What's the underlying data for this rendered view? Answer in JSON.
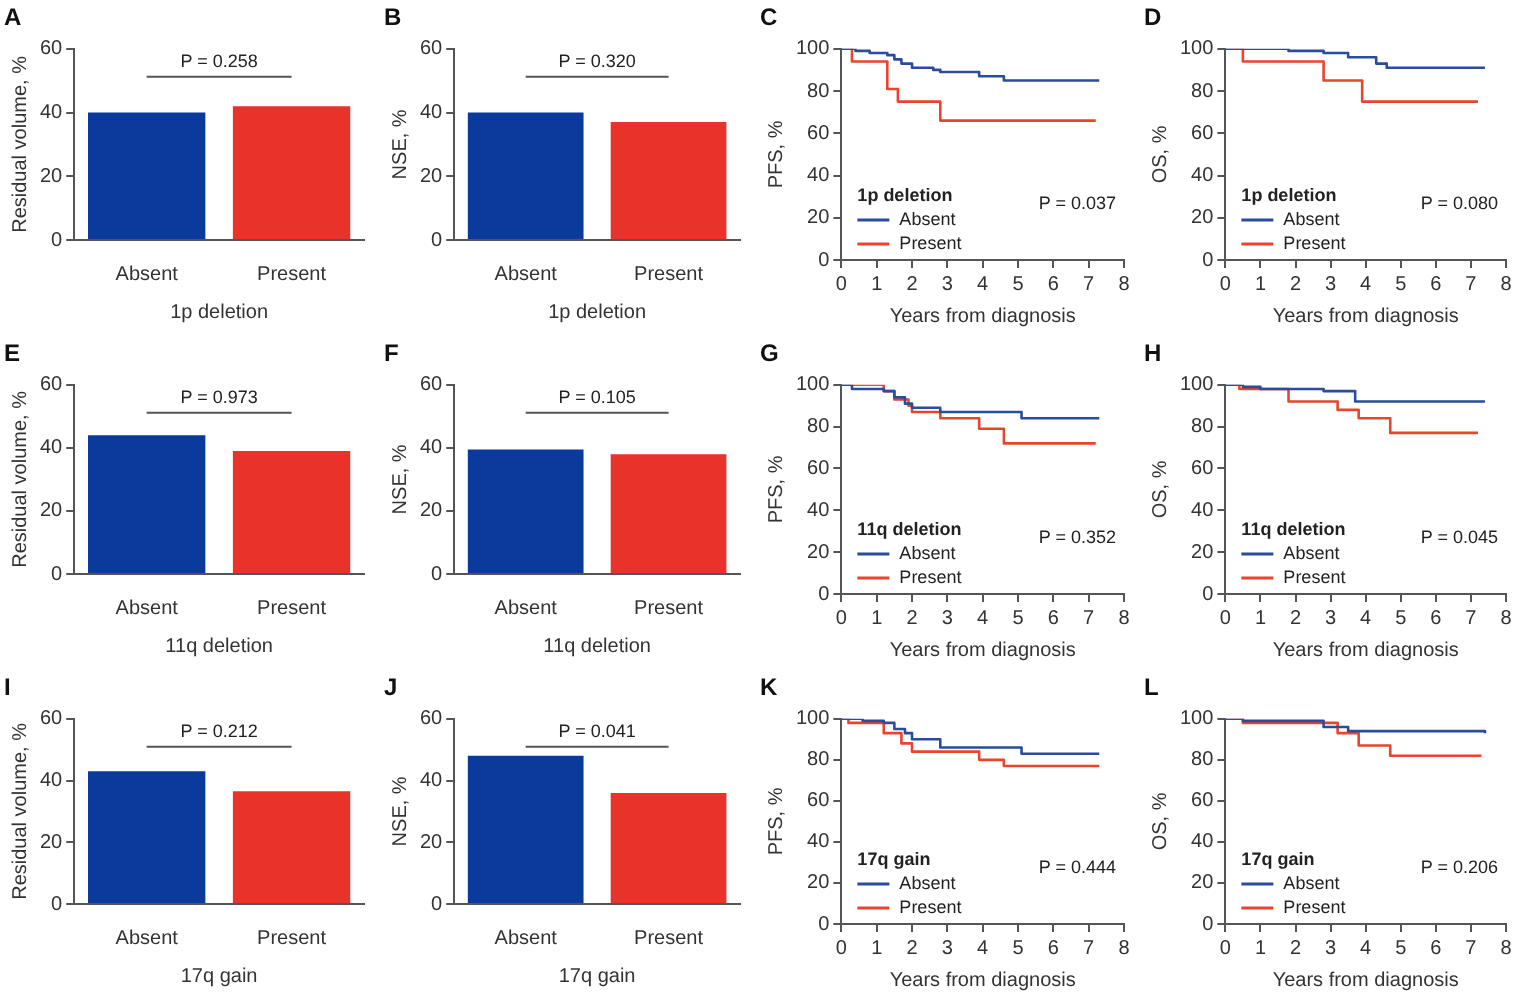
{
  "chart_data": [
    {
      "type": "bar",
      "title": "A",
      "xlabel": "1p deletion",
      "ylabel": "Residual volume, %",
      "categories": [
        "Absent",
        "Present"
      ],
      "values": [
        40,
        42
      ],
      "colors": [
        "#0a3a9c",
        "#e8322a"
      ],
      "ylim": [
        0,
        60
      ],
      "yticks": [
        0,
        20,
        40,
        60
      ],
      "annotations": [
        "P = 0.258"
      ]
    },
    {
      "type": "bar",
      "title": "B",
      "xlabel": "1p deletion",
      "ylabel": "NSE, %",
      "categories": [
        "Absent",
        "Present"
      ],
      "values": [
        40,
        37
      ],
      "colors": [
        "#0a3a9c",
        "#e8322a"
      ],
      "ylim": [
        0,
        60
      ],
      "yticks": [
        0,
        20,
        40,
        60
      ],
      "annotations": [
        "P = 0.320"
      ]
    },
    {
      "type": "step",
      "title": "C",
      "xlabel": "Years from diagnosis",
      "ylabel": "PFS, %",
      "legend_title": "1p deletion",
      "legend": "bottom left",
      "xlim": [
        0,
        8
      ],
      "xticks": [
        0,
        1,
        2,
        3,
        4,
        5,
        6,
        7,
        8
      ],
      "ylim": [
        0,
        100
      ],
      "yticks": [
        0,
        20,
        40,
        60,
        80,
        100
      ],
      "annotations": [
        "P = 0.037"
      ],
      "series": [
        {
          "name": "Absent",
          "color": "#2b4c9b",
          "x": [
            0,
            0.4,
            0.8,
            1.3,
            1.5,
            1.7,
            2.0,
            2.6,
            2.8,
            3.9,
            4.6,
            7.3
          ],
          "values": [
            100,
            99,
            98,
            97,
            95,
            93,
            91,
            90,
            89,
            87,
            85,
            85
          ]
        },
        {
          "name": "Present",
          "color": "#e8452e",
          "x": [
            0,
            0.3,
            1.3,
            1.6,
            2.8,
            7.2
          ],
          "values": [
            100,
            94,
            81,
            75,
            66,
            66
          ]
        }
      ]
    },
    {
      "type": "step",
      "title": "D",
      "xlabel": "Years from diagnosis",
      "ylabel": "OS, %",
      "legend_title": "1p deletion",
      "legend": "bottom left",
      "xlim": [
        0,
        8
      ],
      "xticks": [
        0,
        1,
        2,
        3,
        4,
        5,
        6,
        7,
        8
      ],
      "ylim": [
        0,
        100
      ],
      "yticks": [
        0,
        20,
        40,
        60,
        80,
        100
      ],
      "annotations": [
        "P = 0.080"
      ],
      "series": [
        {
          "name": "Absent",
          "color": "#2b4c9b",
          "x": [
            0,
            1.8,
            2.8,
            3.5,
            4.3,
            4.6,
            7.4
          ],
          "values": [
            100,
            99,
            98,
            96,
            93,
            91,
            91
          ]
        },
        {
          "name": "Present",
          "color": "#e8452e",
          "x": [
            0,
            0.5,
            2.8,
            3.9,
            7.2
          ],
          "values": [
            100,
            94,
            85,
            75,
            75
          ]
        }
      ]
    },
    {
      "type": "bar",
      "title": "E",
      "xlabel": "11q deletion",
      "ylabel": "Residual volume, %",
      "categories": [
        "Absent",
        "Present"
      ],
      "values": [
        44,
        39
      ],
      "colors": [
        "#0a3a9c",
        "#e8322a"
      ],
      "ylim": [
        0,
        60
      ],
      "yticks": [
        0,
        20,
        40,
        60
      ],
      "annotations": [
        "P = 0.973"
      ]
    },
    {
      "type": "bar",
      "title": "F",
      "xlabel": "11q deletion",
      "ylabel": "NSE, %",
      "categories": [
        "Absent",
        "Present"
      ],
      "values": [
        39.5,
        38
      ],
      "colors": [
        "#0a3a9c",
        "#e8322a"
      ],
      "ylim": [
        0,
        60
      ],
      "yticks": [
        0,
        20,
        40,
        60
      ],
      "annotations": [
        "P = 0.105"
      ]
    },
    {
      "type": "step",
      "title": "G",
      "xlabel": "Years from diagnosis",
      "ylabel": "PFS, %",
      "legend_title": "11q deletion",
      "legend": "bottom left",
      "xlim": [
        0,
        8
      ],
      "xticks": [
        0,
        1,
        2,
        3,
        4,
        5,
        6,
        7,
        8
      ],
      "ylim": [
        0,
        100
      ],
      "yticks": [
        0,
        20,
        40,
        60,
        80,
        100
      ],
      "annotations": [
        "P = 0.352"
      ],
      "series": [
        {
          "name": "Absent",
          "color": "#2b4c9b",
          "x": [
            0,
            0.3,
            1.2,
            1.5,
            1.8,
            2.0,
            2.8,
            5.1,
            7.3
          ],
          "values": [
            100,
            98,
            97,
            94,
            91,
            89,
            87,
            84,
            84
          ]
        },
        {
          "name": "Present",
          "color": "#e8452e",
          "x": [
            0,
            1.2,
            1.5,
            1.9,
            2.0,
            2.8,
            3.9,
            4.6,
            7.2
          ],
          "values": [
            100,
            97,
            93,
            90,
            87,
            84,
            79,
            72,
            72
          ]
        }
      ]
    },
    {
      "type": "step",
      "title": "H",
      "xlabel": "Years from diagnosis",
      "ylabel": "OS, %",
      "legend_title": "11q deletion",
      "legend": "bottom left",
      "xlim": [
        0,
        8
      ],
      "xticks": [
        0,
        1,
        2,
        3,
        4,
        5,
        6,
        7,
        8
      ],
      "ylim": [
        0,
        100
      ],
      "yticks": [
        0,
        20,
        40,
        60,
        80,
        100
      ],
      "annotations": [
        "P = 0.045"
      ],
      "series": [
        {
          "name": "Absent",
          "color": "#2b4c9b",
          "x": [
            0,
            0.5,
            1.0,
            2.8,
            3.7,
            7.4
          ],
          "values": [
            100,
            99,
            98,
            97,
            92,
            92
          ]
        },
        {
          "name": "Present",
          "color": "#e8452e",
          "x": [
            0,
            0.4,
            1.8,
            3.2,
            3.8,
            4.7,
            7.2
          ],
          "values": [
            100,
            98,
            92,
            88,
            84,
            77,
            77
          ]
        }
      ]
    },
    {
      "type": "bar",
      "title": "I",
      "xlabel": "17q gain",
      "ylabel": "Residual volume, %",
      "categories": [
        "Absent",
        "Present"
      ],
      "values": [
        43,
        36.5
      ],
      "colors": [
        "#0a3a9c",
        "#e8322a"
      ],
      "ylim": [
        0,
        60
      ],
      "yticks": [
        0,
        20,
        40,
        60
      ],
      "annotations": [
        "P = 0.212"
      ]
    },
    {
      "type": "bar",
      "title": "J",
      "xlabel": "17q gain",
      "ylabel": "NSE, %",
      "categories": [
        "Absent",
        "Present"
      ],
      "values": [
        48,
        36
      ],
      "colors": [
        "#0a3a9c",
        "#e8322a"
      ],
      "ylim": [
        0,
        60
      ],
      "yticks": [
        0,
        20,
        40,
        60
      ],
      "annotations": [
        "P = 0.041"
      ]
    },
    {
      "type": "step",
      "title": "K",
      "xlabel": "Years from diagnosis",
      "ylabel": "PFS, %",
      "legend_title": "17q gain",
      "legend": "bottom left",
      "xlim": [
        0,
        8
      ],
      "xticks": [
        0,
        1,
        2,
        3,
        4,
        5,
        6,
        7,
        8
      ],
      "ylim": [
        0,
        100
      ],
      "yticks": [
        0,
        20,
        40,
        60,
        80,
        100
      ],
      "annotations": [
        "P = 0.444"
      ],
      "series": [
        {
          "name": "Absent",
          "color": "#2b4c9b",
          "x": [
            0,
            0.6,
            1.2,
            1.5,
            1.8,
            2.0,
            2.8,
            5.1,
            7.3
          ],
          "values": [
            100,
            99,
            98,
            95,
            93,
            90,
            86,
            83,
            83
          ]
        },
        {
          "name": "Present",
          "color": "#e8452e",
          "x": [
            0,
            0.2,
            1.2,
            1.7,
            2.0,
            3.9,
            4.6,
            7.3
          ],
          "values": [
            100,
            98,
            93,
            88,
            84,
            80,
            77,
            77
          ]
        }
      ]
    },
    {
      "type": "step",
      "title": "L",
      "xlabel": "Years from diagnosis",
      "ylabel": "OS, %",
      "legend_title": "17q gain",
      "legend": "bottom left",
      "xlim": [
        0,
        8
      ],
      "xticks": [
        0,
        1,
        2,
        3,
        4,
        5,
        6,
        7,
        8
      ],
      "ylim": [
        0,
        100
      ],
      "yticks": [
        0,
        20,
        40,
        60,
        80,
        100
      ],
      "annotations": [
        "P = 0.206"
      ],
      "series": [
        {
          "name": "Absent",
          "color": "#2b4c9b",
          "x": [
            0,
            0.5,
            2.8,
            3.5,
            7.4
          ],
          "values": [
            100,
            99,
            96,
            94,
            93
          ]
        },
        {
          "name": "Present",
          "color": "#e8452e",
          "x": [
            0,
            0.5,
            3.2,
            3.8,
            4.7,
            7.3
          ],
          "values": [
            100,
            98,
            93,
            87,
            82,
            82
          ]
        }
      ]
    }
  ]
}
